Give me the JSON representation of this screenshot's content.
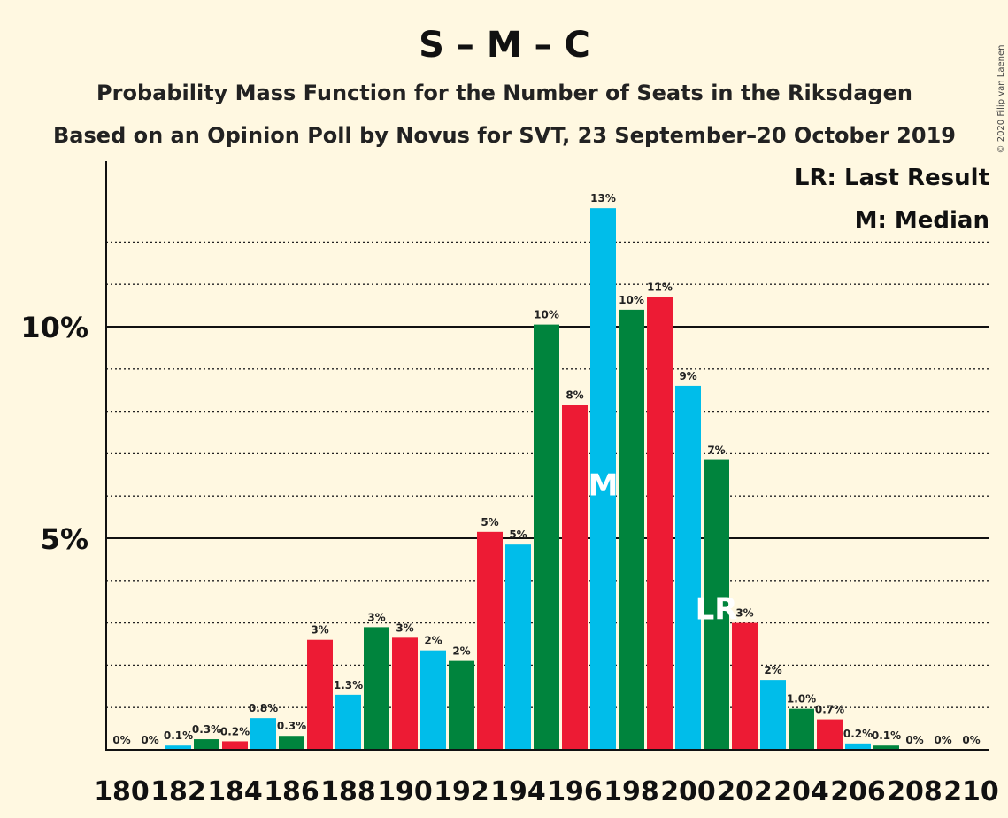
{
  "chart_data": {
    "type": "bar",
    "title": "S – M – C",
    "subtitle1": "Probability Mass Function for the Number of Seats in the Riksdagen",
    "subtitle2": "Based on an Opinion Poll by Novus for SVT, 23 September–20 October 2019",
    "legend": [
      "LR: Last Result",
      "M: Median"
    ],
    "copyright": "© 2020 Filip van Laenen",
    "ylim": [
      0,
      14
    ],
    "yticks": [
      {
        "value": 5,
        "label": "5%"
      },
      {
        "value": 10,
        "label": "10%"
      }
    ],
    "minor_grid": [
      1,
      2,
      3,
      4,
      6,
      7,
      8,
      9,
      11,
      12
    ],
    "x": [
      180,
      181,
      182,
      183,
      184,
      185,
      186,
      187,
      188,
      189,
      190,
      191,
      192,
      193,
      194,
      195,
      196,
      197,
      198,
      199,
      200,
      201,
      202,
      203,
      204,
      205,
      206,
      207,
      208,
      209,
      210
    ],
    "values": [
      0,
      0,
      0.1,
      0.25,
      0.2,
      0.75,
      0.33,
      2.6,
      1.3,
      2.9,
      2.65,
      2.35,
      2.1,
      5.15,
      4.85,
      10.05,
      8.15,
      12.8,
      10.4,
      10.7,
      8.6,
      6.85,
      3.0,
      1.65,
      0.97,
      0.72,
      0.15,
      0.1,
      0,
      0,
      0
    ],
    "labels": [
      "0%",
      "0%",
      "0.1%",
      "0.3%",
      "0.2%",
      "0.8%",
      "0.3%",
      "3%",
      "1.3%",
      "3%",
      "3%",
      "2%",
      "2%",
      "5%",
      "5%",
      "10%",
      "8%",
      "13%",
      "10%",
      "11%",
      "9%",
      "7%",
      "3%",
      "2%",
      "1.0%",
      "0.7%",
      "0.2%",
      "0.1%",
      "0%",
      "0%",
      "0%"
    ],
    "xtick_labels": [
      "180",
      "182",
      "184",
      "186",
      "188",
      "190",
      "192",
      "194",
      "196",
      "198",
      "200",
      "202",
      "204",
      "206",
      "208",
      "210"
    ],
    "xtick_values": [
      180,
      182,
      184,
      186,
      188,
      190,
      192,
      194,
      196,
      198,
      200,
      202,
      204,
      206,
      208,
      210
    ],
    "median_seat": 197,
    "median_marker": "M",
    "last_result_seat": 201,
    "last_result_marker": "LR",
    "colors": {
      "green": "#00843D",
      "red": "#ED1B34",
      "blue": "#00BDEA"
    },
    "color_cycle": [
      "green",
      "red",
      "blue"
    ]
  }
}
